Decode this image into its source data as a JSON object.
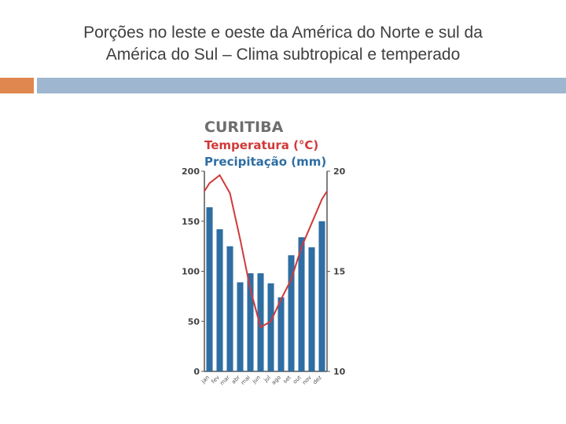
{
  "slide": {
    "title_line1": "Porções no leste e oeste da América do Norte e sul da",
    "title_line2": "América do Sul – Clima subtropical e temperado"
  },
  "colors": {
    "title_text": "#404040",
    "accent_bar": "#e0864f",
    "main_bar": "#9eb6cf",
    "precip_bar": "#2f6ea3",
    "temperature_line": "#d03a3a",
    "title_chart": "#6e6e6e",
    "precip_label": "#2f6ea3",
    "temp_label": "#d03a3a"
  },
  "chart_data": {
    "type": "bar",
    "title": "CURITIBA",
    "legend": [
      "Temperatura (°C)",
      "Precipitação (mm)"
    ],
    "categories": [
      "jan",
      "fev",
      "mar",
      "abr",
      "mai",
      "jun",
      "jul",
      "ago",
      "set",
      "out",
      "nov",
      "dez"
    ],
    "series": [
      {
        "name": "Precipitação (mm)",
        "kind": "bar",
        "axis": "left",
        "values": [
          164,
          142,
          125,
          89,
          98,
          98,
          88,
          74,
          116,
          134,
          124,
          150
        ]
      },
      {
        "name": "Temperatura (°C)",
        "kind": "line",
        "axis": "right",
        "values": [
          19.4,
          19.8,
          18.9,
          16.6,
          14.1,
          12.2,
          12.5,
          13.6,
          14.6,
          16.2,
          17.4,
          18.6
        ]
      }
    ],
    "left_axis": {
      "ylim": [
        0,
        200
      ],
      "ticks": [
        0,
        50,
        100,
        150,
        200
      ],
      "tick_labels": [
        "0",
        "50",
        "100",
        "150",
        "200"
      ]
    },
    "right_axis": {
      "ylim": [
        10,
        20
      ],
      "ticks": [
        10,
        15,
        20
      ],
      "tick_labels": [
        "10",
        "15",
        "20"
      ]
    },
    "grid": false
  }
}
